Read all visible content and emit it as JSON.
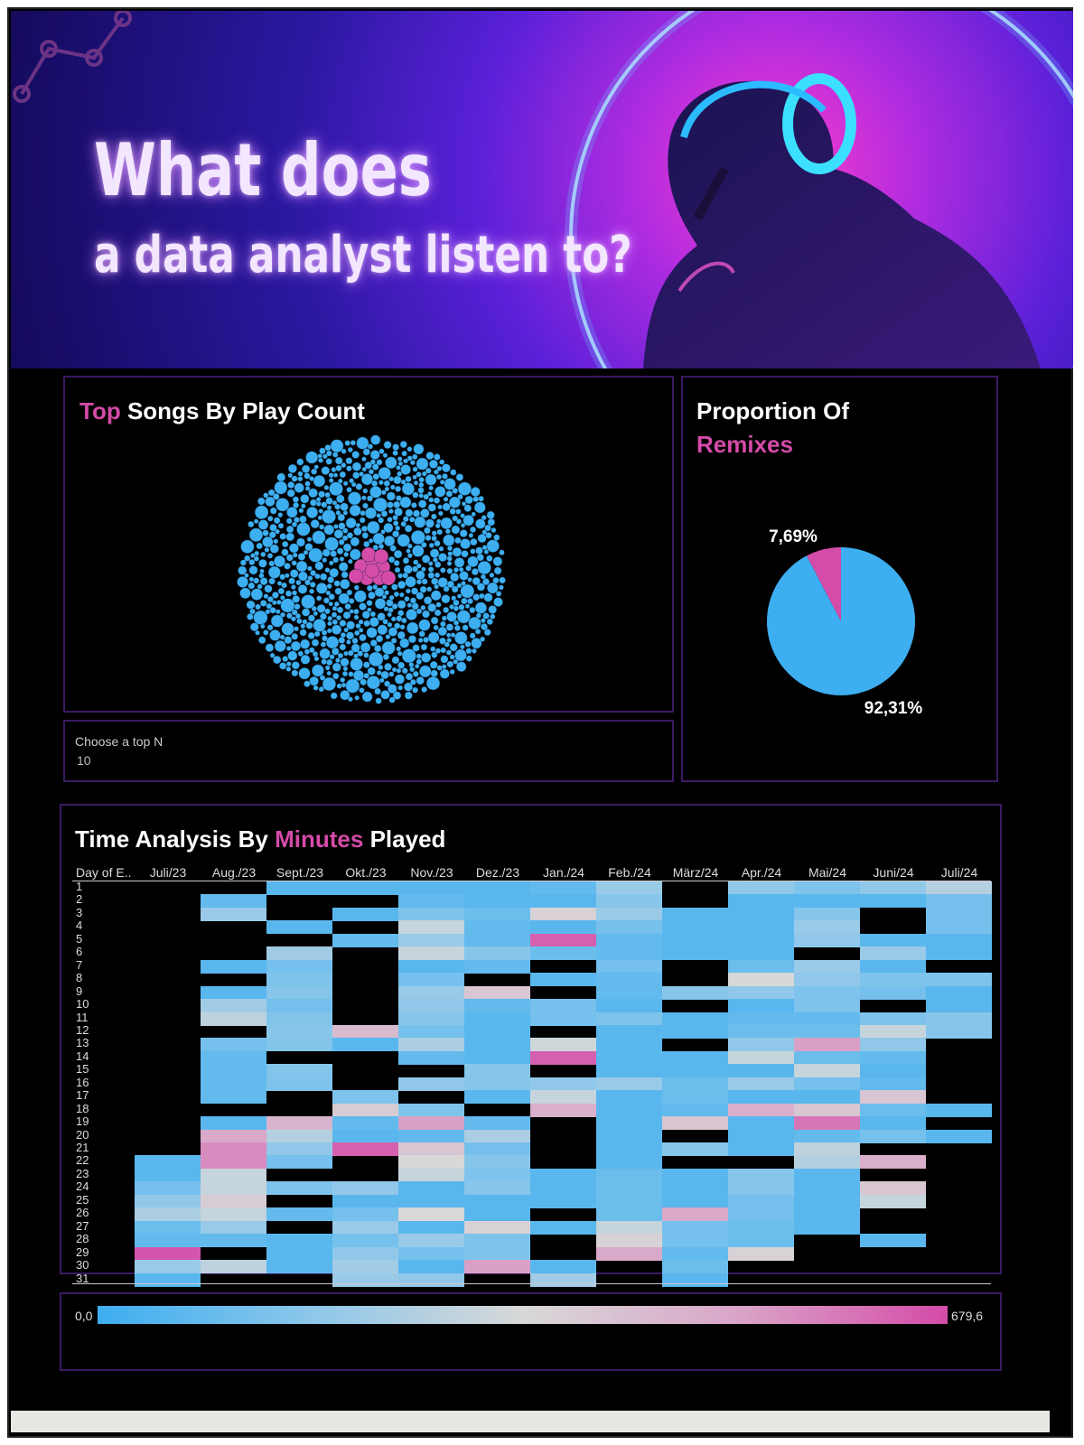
{
  "hero": {
    "title_line1": "What does",
    "title_line2": "a data analyst listen to?"
  },
  "top_songs": {
    "title_accent": "Top",
    "title_rest": "Songs By Play Count",
    "highlight_color": "#d44ba8",
    "base_color": "#3daef0"
  },
  "topn": {
    "label": "Choose a top N",
    "value": "10"
  },
  "remix": {
    "title_line1": "Proportion Of",
    "title_line2": "Remixes",
    "chart_data": {
      "type": "pie",
      "categories": [
        "Remix",
        "Non-remix"
      ],
      "values": [
        7.69,
        92.31
      ],
      "labels": [
        "7,69%",
        "92,31%"
      ],
      "colors": [
        "#d44ba8",
        "#3daef0"
      ]
    }
  },
  "time": {
    "title_a": "Time Analysis By",
    "title_accent": "Minutes",
    "title_b": "Played",
    "day_header": "Day of E..",
    "months": [
      "Juli/23",
      "Aug./23",
      "Sept./23",
      "Okt./23",
      "Nov./23",
      "Dez./23",
      "Jan./24",
      "Feb./24",
      "März/24",
      "Apr./24",
      "Mai/24",
      "Juni/24",
      "Juli/24"
    ],
    "days": [
      "1",
      "2",
      "3",
      "4",
      "5",
      "6",
      "7",
      "8",
      "9",
      "10",
      "11",
      "12",
      "13",
      "14",
      "15",
      "16",
      "17",
      "18",
      "19",
      "20",
      "21",
      "22",
      "23",
      "24",
      "25",
      "26",
      "27",
      "28",
      "29",
      "30",
      "31"
    ]
  },
  "legend": {
    "min": "0,0",
    "max": "679,6"
  },
  "chart_data": {
    "type": "heatmap",
    "x": [
      "Juli/23",
      "Aug./23",
      "Sept./23",
      "Okt./23",
      "Nov./23",
      "Dez./23",
      "Jan./24",
      "Feb./24",
      "März/24",
      "Apr./24",
      "Mai/24",
      "Juni/24",
      "Juli/24"
    ],
    "y": [
      "1",
      "2",
      "3",
      "4",
      "5",
      "6",
      "7",
      "8",
      "9",
      "10",
      "11",
      "12",
      "13",
      "14",
      "15",
      "16",
      "17",
      "18",
      "19",
      "20",
      "21",
      "22",
      "23",
      "24",
      "25",
      "26",
      "27",
      "28",
      "29",
      "30",
      "31"
    ],
    "range": [
      0,
      679.6
    ],
    "values": [
      [
        null,
        null,
        null,
        null,
        null,
        null,
        null,
        null,
        null,
        null,
        null,
        null,
        null,
        null,
        null,
        null,
        null,
        null,
        null,
        null,
        null,
        60,
        60,
        120,
        180,
        240,
        100,
        80,
        660,
        200,
        60
      ],
      [
        null,
        80,
        200,
        null,
        null,
        null,
        60,
        null,
        60,
        220,
        280,
        null,
        120,
        80,
        80,
        80,
        80,
        null,
        60,
        500,
        560,
        560,
        300,
        300,
        380,
        300,
        200,
        80,
        null,
        280,
        null
      ],
      [
        60,
        null,
        null,
        60,
        null,
        220,
        120,
        140,
        160,
        120,
        150,
        160,
        150,
        null,
        150,
        140,
        null,
        null,
        460,
        260,
        180,
        120,
        null,
        140,
        null,
        80,
        null,
        60,
        60,
        60,
        null
      ],
      [
        60,
        null,
        60,
        null,
        80,
        null,
        null,
        null,
        null,
        null,
        null,
        440,
        60,
        null,
        null,
        null,
        140,
        380,
        80,
        60,
        640,
        null,
        null,
        180,
        60,
        120,
        200,
        120,
        180,
        220,
        200
      ],
      [
        60,
        80,
        140,
        300,
        200,
        300,
        60,
        120,
        200,
        180,
        160,
        120,
        240,
        80,
        null,
        180,
        null,
        140,
        520,
        80,
        400,
        340,
        300,
        60,
        60,
        340,
        60,
        200,
        120,
        60,
        180
      ],
      [
        60,
        60,
        100,
        80,
        80,
        160,
        80,
        null,
        400,
        80,
        60,
        60,
        60,
        60,
        160,
        160,
        60,
        null,
        80,
        240,
        120,
        160,
        140,
        160,
        60,
        60,
        360,
        140,
        140,
        520,
        null
      ],
      [
        80,
        60,
        360,
        60,
        640,
        100,
        null,
        60,
        null,
        120,
        120,
        null,
        320,
        640,
        null,
        180,
        300,
        480,
        null,
        null,
        null,
        null,
        60,
        60,
        60,
        null,
        60,
        null,
        null,
        60,
        220
      ],
      [
        200,
        160,
        200,
        120,
        80,
        80,
        120,
        80,
        80,
        60,
        140,
        60,
        60,
        60,
        60,
        200,
        60,
        60,
        60,
        60,
        60,
        60,
        100,
        100,
        100,
        100,
        300,
        360,
        500,
        null,
        null
      ],
      [
        null,
        null,
        60,
        60,
        60,
        60,
        null,
        null,
        160,
        null,
        60,
        60,
        null,
        60,
        60,
        100,
        100,
        80,
        400,
        null,
        160,
        null,
        60,
        60,
        60,
        500,
        120,
        120,
        80,
        100,
        60
      ],
      [
        180,
        60,
        60,
        60,
        60,
        60,
        100,
        340,
        180,
        60,
        80,
        100,
        180,
        300,
        60,
        200,
        60,
        480,
        60,
        60,
        60,
        null,
        160,
        160,
        120,
        120,
        100,
        100,
        360,
        null,
        null
      ],
      [
        140,
        60,
        160,
        200,
        180,
        null,
        200,
        180,
        140,
        140,
        80,
        100,
        520,
        100,
        300,
        120,
        60,
        400,
        600,
        80,
        280,
        260,
        60,
        60,
        60,
        60,
        60,
        null,
        null,
        null,
        null
      ],
      [
        180,
        60,
        null,
        null,
        60,
        200,
        60,
        140,
        120,
        null,
        140,
        300,
        180,
        80,
        60,
        80,
        400,
        100,
        60,
        120,
        null,
        480,
        null,
        400,
        300,
        null,
        null,
        60,
        null,
        null,
        null
      ],
      [
        260,
        120,
        120,
        120,
        60,
        60,
        null,
        140,
        60,
        60,
        160,
        160,
        null,
        null,
        null,
        null,
        null,
        60,
        null,
        60,
        null,
        null,
        null,
        null,
        null,
        null,
        null,
        null,
        null,
        null,
        null
      ]
    ]
  }
}
